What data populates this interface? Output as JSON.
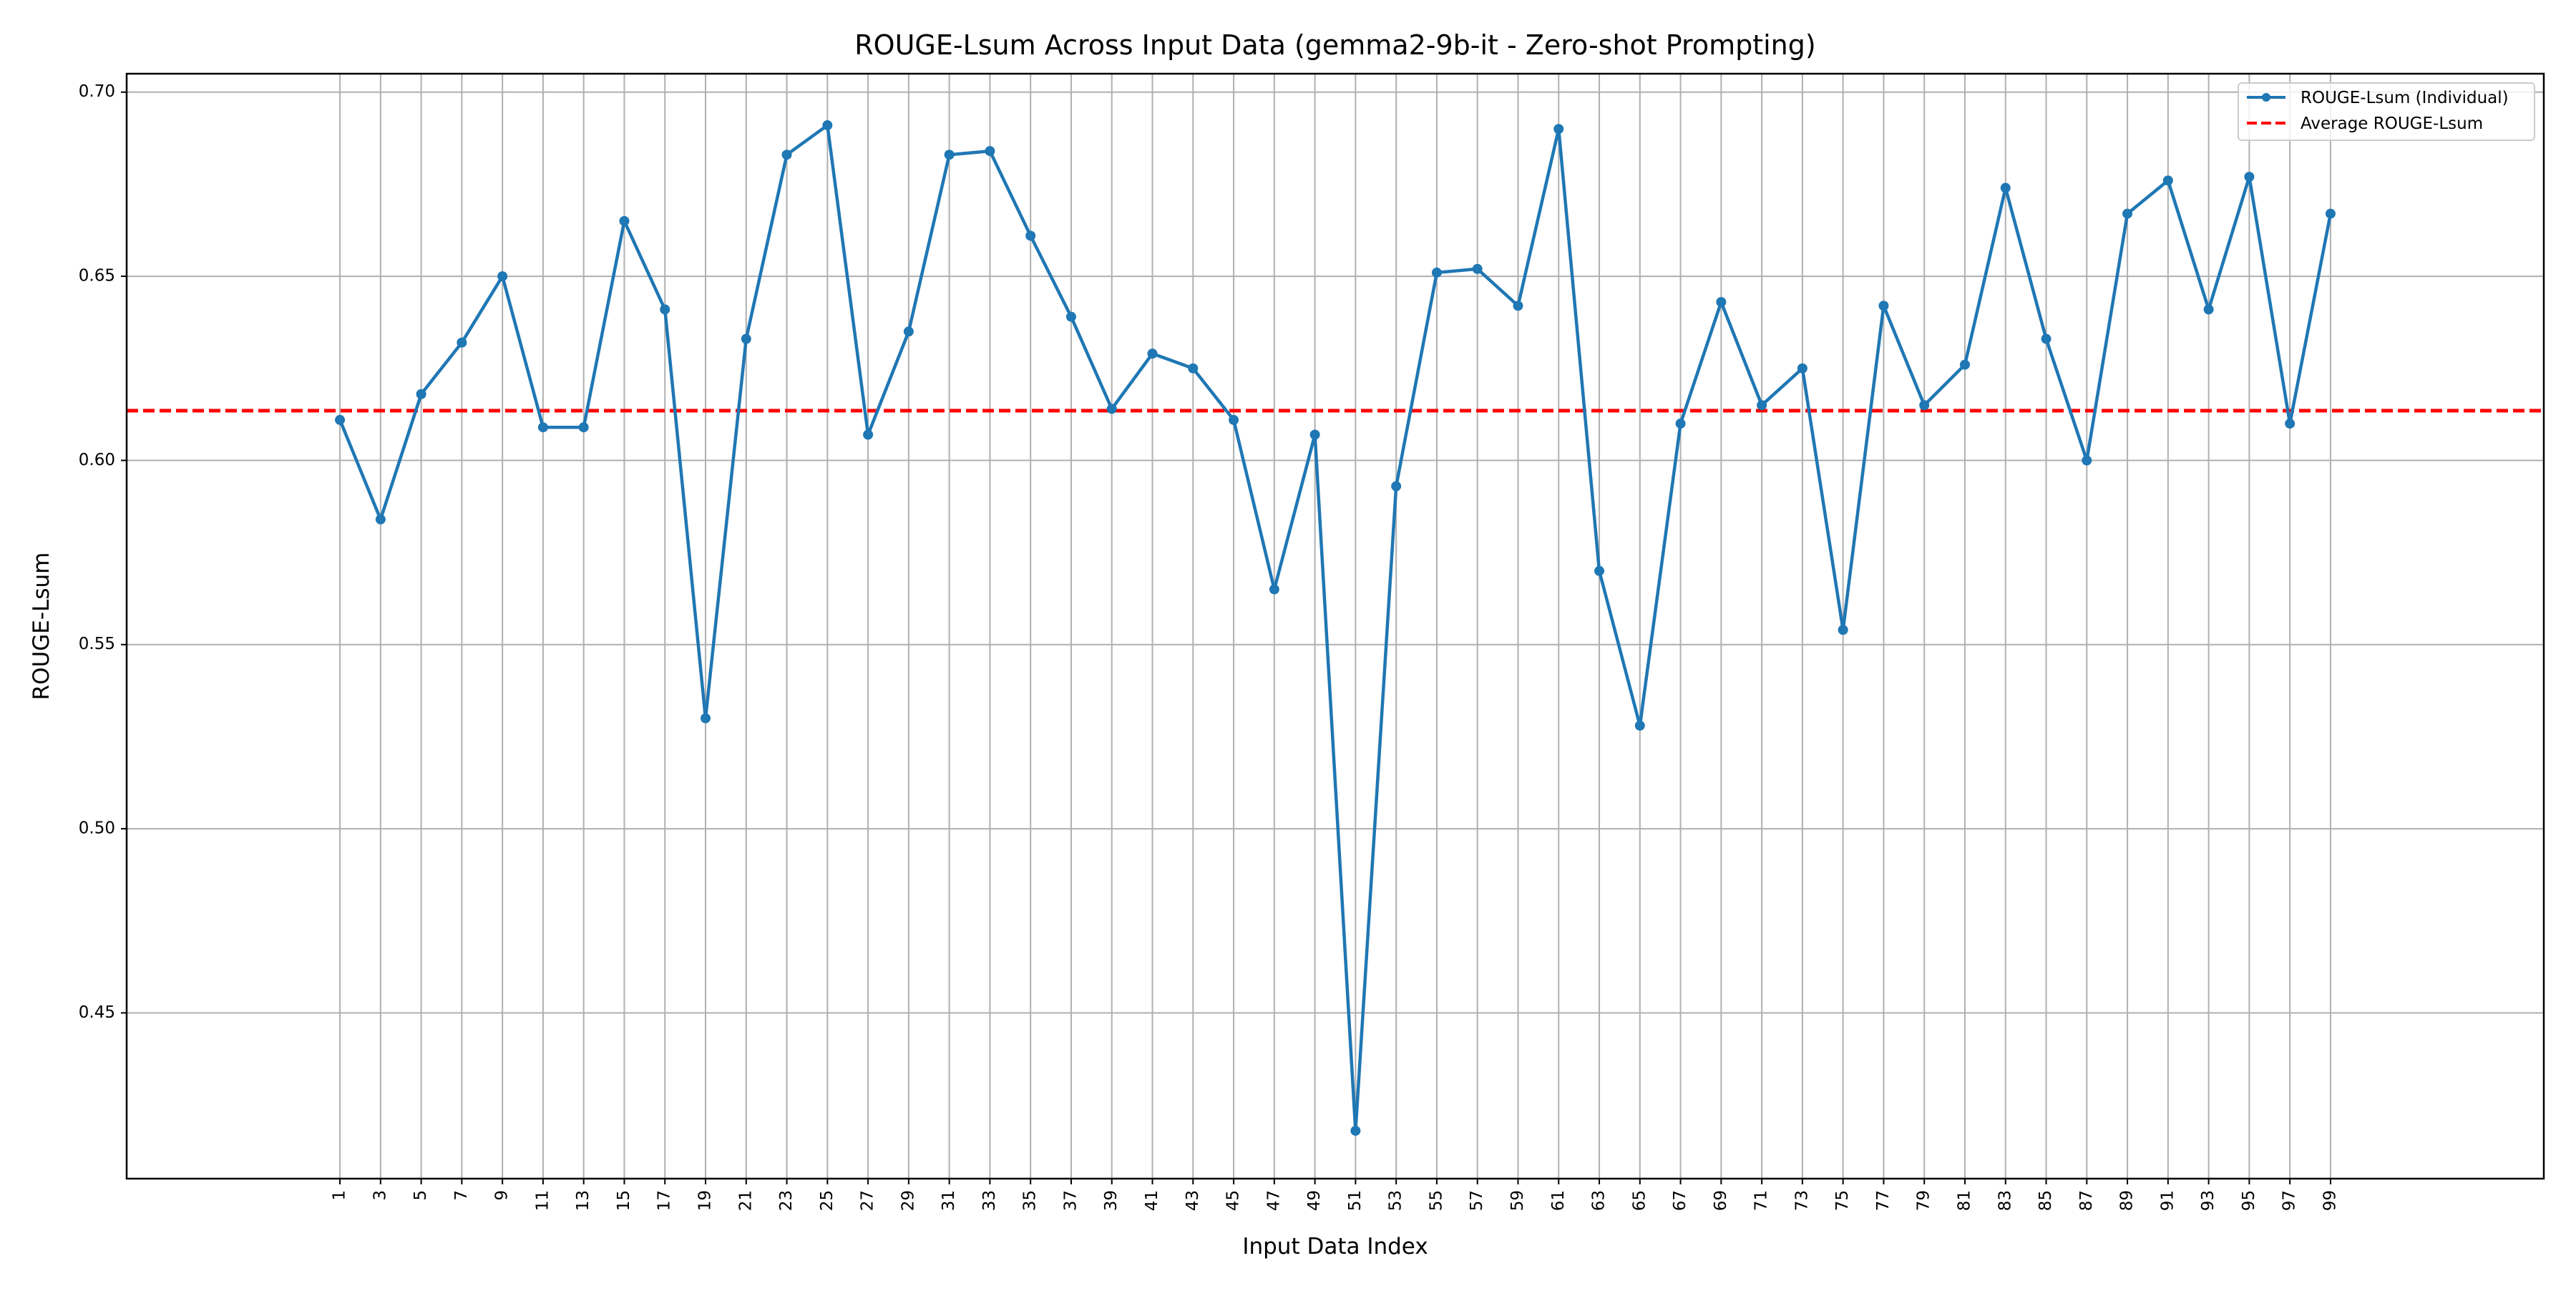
{
  "chart_data": {
    "type": "line",
    "title": "ROUGE-Lsum Across Input Data (gemma2-9b-it - Zero-shot Prompting)",
    "xlabel": "Input Data Index",
    "ylabel": "ROUGE-Lsum",
    "x": [
      1,
      3,
      5,
      7,
      9,
      11,
      13,
      15,
      17,
      19,
      21,
      23,
      25,
      27,
      29,
      31,
      33,
      35,
      37,
      39,
      41,
      43,
      45,
      47,
      49,
      51,
      53,
      55,
      57,
      59,
      61,
      63,
      65,
      67,
      69,
      71,
      73,
      75,
      77,
      79,
      81,
      83,
      85,
      87,
      89,
      91,
      93,
      95,
      97,
      99
    ],
    "xticks": [
      "1",
      "3",
      "5",
      "7",
      "9",
      "11",
      "13",
      "15",
      "17",
      "19",
      "21",
      "23",
      "25",
      "27",
      "29",
      "31",
      "33",
      "35",
      "37",
      "39",
      "41",
      "43",
      "45",
      "47",
      "49",
      "51",
      "53",
      "55",
      "57",
      "59",
      "61",
      "63",
      "65",
      "67",
      "69",
      "71",
      "73",
      "75",
      "77",
      "79",
      "81",
      "83",
      "85",
      "87",
      "89",
      "91",
      "93",
      "95",
      "97",
      "99"
    ],
    "yticks": [
      "0.45",
      "0.50",
      "0.55",
      "0.60",
      "0.65",
      "0.70"
    ],
    "yticks_values": [
      0.45,
      0.5,
      0.55,
      0.6,
      0.65,
      0.7
    ],
    "xlim": [
      -9.5,
      109.5
    ],
    "ylim": [
      0.405,
      0.705
    ],
    "grid": true,
    "legend_position": "top-right",
    "series": [
      {
        "name": "ROUGE-Lsum (Individual)",
        "color": "#1f77b4",
        "style": "solid-with-markers",
        "values": [
          0.611,
          0.584,
          0.618,
          0.632,
          0.65,
          0.609,
          0.609,
          0.665,
          0.641,
          0.53,
          0.633,
          0.683,
          0.691,
          0.607,
          0.635,
          0.683,
          0.684,
          0.661,
          0.639,
          0.614,
          0.629,
          0.625,
          0.611,
          0.565,
          0.607,
          0.418,
          0.593,
          0.651,
          0.652,
          0.642,
          0.69,
          0.57,
          0.528,
          0.61,
          0.643,
          0.615,
          0.625,
          0.554,
          0.642,
          0.615,
          0.626,
          0.674,
          0.633,
          0.6,
          0.667,
          0.676,
          0.641,
          0.677,
          0.61,
          0.667
        ]
      },
      {
        "name": "Average ROUGE-Lsum",
        "color": "#ff0000",
        "style": "dashed",
        "value": 0.6135
      }
    ]
  }
}
